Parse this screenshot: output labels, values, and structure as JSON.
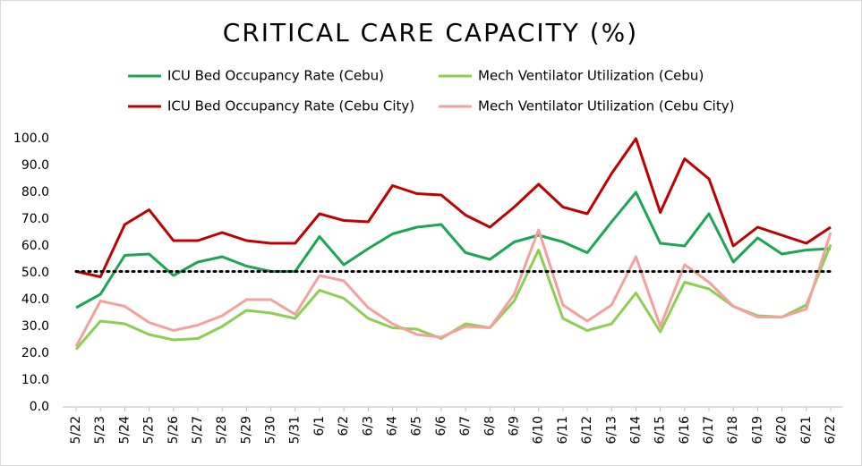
{
  "chart_data": {
    "type": "line",
    "title": "CRITICAL CARE CAPACITY (%)",
    "categories": [
      "5/22",
      "5/23",
      "5/24",
      "5/25",
      "5/26",
      "5/27",
      "5/28",
      "5/29",
      "5/30",
      "5/31",
      "6/1",
      "6/2",
      "6/3",
      "6/4",
      "6/5",
      "6/6",
      "6/7",
      "6/8",
      "6/9",
      "6/10",
      "6/11",
      "6/12",
      "6/13",
      "6/14",
      "6/15",
      "6/16",
      "6/17",
      "6/18",
      "6/19",
      "6/20",
      "6/21",
      "6/22"
    ],
    "series": [
      {
        "name": "ICU Bed Occupancy Rate (Cebu)",
        "color": "#1aa655",
        "values": [
          37,
          42,
          56.5,
          57,
          49,
          54,
          56,
          52.5,
          50.5,
          50.5,
          63.5,
          53,
          59,
          64.5,
          67,
          68,
          57.5,
          55,
          61.5,
          64,
          61.5,
          57.5,
          69,
          80,
          61,
          60,
          72,
          54,
          63,
          57,
          58.5,
          59
        ]
      },
      {
        "name": "Mech Ventilator Utilization (Cebu)",
        "color": "#8ccf50",
        "values": [
          21.5,
          32,
          31,
          27,
          25,
          25.5,
          30,
          36,
          35,
          33,
          43.5,
          40.5,
          33,
          29.5,
          29,
          25.5,
          31,
          29.5,
          39.5,
          58.5,
          33,
          28.5,
          31,
          42.5,
          28,
          46.5,
          44,
          37.5,
          34,
          33.5,
          38,
          60.5
        ]
      },
      {
        "name": "ICU Bed Occupancy Rate (Cebu City)",
        "color": "#c00000",
        "values": [
          50.5,
          48.5,
          68,
          73.5,
          62,
          62,
          65,
          62,
          61,
          61,
          72,
          69.5,
          69,
          82.5,
          79.5,
          79,
          71.5,
          67,
          74.5,
          83,
          74.5,
          72,
          87,
          100,
          72.5,
          92.5,
          85,
          60,
          67,
          64,
          61,
          67
        ]
      },
      {
        "name": "Mech Ventilator Utilization (Cebu City)",
        "color": "#f4a09c",
        "values": [
          22.5,
          39.5,
          37.5,
          31.5,
          28.5,
          30.5,
          34,
          40,
          40,
          34.5,
          49,
          47,
          37,
          31,
          27,
          26,
          30,
          29.5,
          42,
          66,
          38,
          32,
          38,
          56,
          30,
          53,
          46.5,
          37.5,
          33.5,
          33.5,
          36.5,
          65
        ]
      }
    ],
    "reference_line": 50.5,
    "ylim": [
      0,
      100
    ],
    "yticks": [
      {
        "value": 0,
        "label": "0.0"
      },
      {
        "value": 10,
        "label": "10.0"
      },
      {
        "value": 20,
        "label": "20.0"
      },
      {
        "value": 30,
        "label": "30.0"
      },
      {
        "value": 40,
        "label": "40.0"
      },
      {
        "value": 50,
        "label": "50.0"
      },
      {
        "value": 60,
        "label": "60.0"
      },
      {
        "value": 70,
        "label": "70.0"
      },
      {
        "value": 80,
        "label": "80.0"
      },
      {
        "value": 90,
        "label": "90.0"
      },
      {
        "value": 100,
        "label": "100.0"
      }
    ],
    "grid": false
  }
}
